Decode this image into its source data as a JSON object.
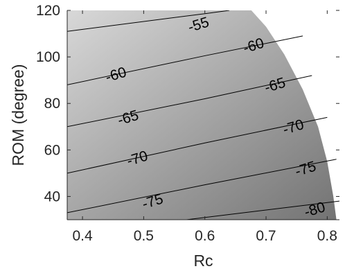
{
  "chart_data": {
    "type": "contour",
    "xlabel": "Rc",
    "ylabel": "ROM (degree)",
    "xlim": [
      0.375,
      0.82
    ],
    "ylim": [
      30,
      120
    ],
    "xticks": [
      "0.4",
      "0.5",
      "0.6",
      "0.7",
      "0.8"
    ],
    "xtick_values": [
      0.4,
      0.5,
      0.6,
      0.7,
      0.8
    ],
    "yticks": [
      "40",
      "60",
      "80",
      "100",
      "120"
    ],
    "ytick_values": [
      40,
      60,
      80,
      100,
      120
    ],
    "grid": false,
    "colormap": "gray",
    "domain_boundary": [
      [
        0.676,
        120
      ],
      [
        0.7,
        113
      ],
      [
        0.73,
        101
      ],
      [
        0.76,
        86
      ],
      [
        0.785,
        70
      ],
      [
        0.8,
        55
      ],
      [
        0.81,
        40
      ],
      [
        0.815,
        30
      ]
    ],
    "contours": [
      {
        "level": -55,
        "label": "-55",
        "label_at": [
          0.59,
          113.5
        ],
        "points": [
          [
            0.375,
            111
          ],
          [
            0.6,
            118.6
          ],
          [
            0.64,
            120
          ]
        ]
      },
      {
        "level": -60,
        "label": "-60",
        "label_at": [
          0.455,
          92
        ],
        "points": [
          [
            0.375,
            88
          ],
          [
            0.6,
            100.5
          ],
          [
            0.76,
            109
          ]
        ]
      },
      {
        "level": -60,
        "label": "-60",
        "label_at": [
          0.68,
          104.5
        ],
        "points": []
      },
      {
        "level": -65,
        "label": "-65",
        "label_at": [
          0.475,
          73.5
        ],
        "points": [
          [
            0.375,
            70
          ],
          [
            0.6,
            82
          ],
          [
            0.775,
            92
          ]
        ]
      },
      {
        "level": -65,
        "label": "-65",
        "label_at": [
          0.715,
          87.5
        ],
        "points": []
      },
      {
        "level": -70,
        "label": "-70",
        "label_at": [
          0.49,
          56
        ],
        "points": [
          [
            0.375,
            50
          ],
          [
            0.6,
            63
          ],
          [
            0.8,
            74
          ]
        ]
      },
      {
        "level": -70,
        "label": "-70",
        "label_at": [
          0.745,
          69.5
        ],
        "points": []
      },
      {
        "level": -75,
        "label": "-75",
        "label_at": [
          0.515,
          37.5
        ],
        "points": [
          [
            0.375,
            33
          ],
          [
            0.6,
            45
          ],
          [
            0.815,
            56
          ]
        ]
      },
      {
        "level": -75,
        "label": "-75",
        "label_at": [
          0.765,
          51.5
        ],
        "points": []
      },
      {
        "level": -80,
        "label": "-80",
        "label_at": [
          0.78,
          34
        ],
        "points": [
          [
            0.57,
            30
          ],
          [
            0.82,
            38
          ]
        ]
      }
    ],
    "shading": {
      "light_color": "#d8d8d8",
      "dark_color": "#737373"
    }
  }
}
